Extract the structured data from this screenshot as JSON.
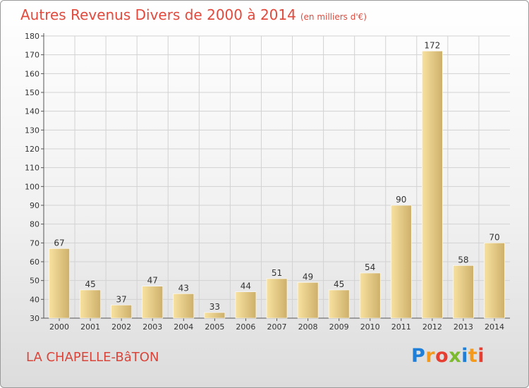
{
  "header": {
    "title": "Autres Revenus Divers de 2000 à 2014",
    "unit": "(en milliers d'€)"
  },
  "footer": {
    "commune": "LA CHAPELLE-BâTON",
    "logo_text": "Proxiti"
  },
  "colors": {
    "title": "#e14a3d",
    "bar_light": "#f8e1a0",
    "bar_dark": "#cdb06a",
    "logo_letters": [
      "#1f7fd8",
      "#f39a1c",
      "#e63e31",
      "#7cba2f",
      "#1f7fd8",
      "#f39a1c",
      "#e63e31"
    ]
  },
  "chart_data": {
    "type": "bar",
    "categories": [
      "2000",
      "2001",
      "2002",
      "2003",
      "2004",
      "2005",
      "2006",
      "2007",
      "2008",
      "2009",
      "2010",
      "2011",
      "2012",
      "2013",
      "2014"
    ],
    "values": [
      67,
      45,
      37,
      47,
      43,
      33,
      44,
      51,
      49,
      45,
      54,
      90,
      172,
      58,
      70
    ],
    "yticks": [
      30,
      40,
      50,
      60,
      70,
      80,
      90,
      100,
      110,
      120,
      130,
      140,
      150,
      160,
      170,
      180
    ],
    "ylim": [
      30,
      180
    ],
    "grid": true,
    "title": "Autres Revenus Divers de 2000 à 2014"
  }
}
